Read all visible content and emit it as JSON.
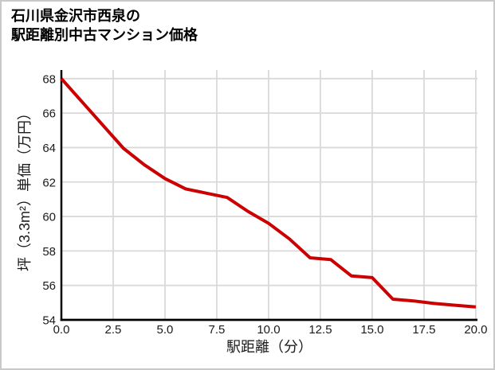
{
  "title": {
    "line1": "石川県金沢市西泉の",
    "line2": "駅距離別中古マンション価格"
  },
  "chart_data": {
    "type": "line",
    "title": "石川県金沢市西泉の\n駅距離別中古マンション価格",
    "xlabel": "駅距離（分）",
    "ylabel": "坪（3.3m²）単価（万円）",
    "x": [
      0,
      1,
      2,
      3,
      4,
      5,
      6,
      7,
      8,
      9,
      10,
      11,
      12,
      13,
      14,
      15,
      16,
      17,
      18,
      19,
      20
    ],
    "values": [
      68.0,
      66.65,
      65.3,
      63.95,
      63.0,
      62.2,
      61.6,
      61.35,
      61.1,
      60.3,
      59.6,
      58.7,
      57.6,
      57.5,
      56.55,
      56.45,
      55.2,
      55.1,
      54.95,
      54.85,
      54.75
    ],
    "xlim": [
      0,
      20.08
    ],
    "ylim": [
      54,
      68.5
    ],
    "x_tick_values": [
      0,
      2.5,
      5,
      7.5,
      10,
      12.5,
      15,
      17.5,
      20
    ],
    "x_tick_labels": [
      "0.0",
      "2.5",
      "5.0",
      "7.5",
      "10.0",
      "12.5",
      "15.0",
      "17.5",
      "20.0"
    ],
    "y_tick_values": [
      54,
      56,
      58,
      60,
      62,
      64,
      66,
      68
    ],
    "y_tick_labels": [
      "54",
      "56",
      "58",
      "60",
      "62",
      "64",
      "66",
      "68"
    ],
    "grid": true,
    "legend": "none",
    "line_color": "#cc0000",
    "grid_color": "#d9d9d9",
    "axis_color": "#000000",
    "tick_color": "#1a1a1a"
  }
}
